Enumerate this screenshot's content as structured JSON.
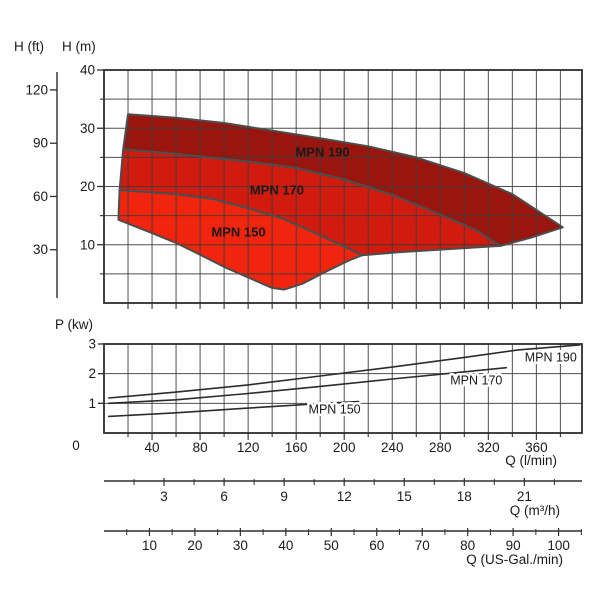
{
  "labels": {
    "head_ft_axis": "H (ft)",
    "head_m_axis": "H (m)",
    "power_axis": "P (kw)",
    "flow_lmin": "Q (l/min)",
    "flow_m3h": "Q (m³/h)",
    "flow_usgal": "Q (US-Gal./min)"
  },
  "colors": {
    "background": "#ffffff",
    "grid": "#3d3d3d",
    "axis": "#2e2e2e",
    "outline": "#4d4d4d",
    "text": "#1a1a1a",
    "region_label_text": "#ffffff",
    "mpn150": "#f1250e",
    "mpn170": "#d01b0e",
    "mpn190": "#9a150d"
  },
  "chart_data": [
    {
      "id": "head-capacity-map",
      "type": "area",
      "y_axis": {
        "label": "H (m)",
        "lim": [
          0,
          40
        ],
        "ticks": [
          10,
          20,
          30,
          40
        ],
        "minor_ticks": [
          5,
          15,
          25,
          35
        ],
        "grid_step": 5
      },
      "y_axis_secondary": {
        "label": "H (ft)",
        "ticks": [
          30,
          60,
          90,
          120
        ],
        "meters_per_foot": 0.3048
      },
      "x_axis": {
        "label": "Q (l/min)",
        "lim": [
          0,
          398
        ],
        "grid_step": 20,
        "tick_step": 20
      },
      "regions": [
        {
          "name": "MPN 190",
          "color": "#9a150d",
          "label_q": 182,
          "label_h": 25.9,
          "points": [
            [
              20,
              32.4
            ],
            [
              60,
              31.8
            ],
            [
              100,
              30.9
            ],
            [
              140,
              29.6
            ],
            [
              180,
              28.3
            ],
            [
              220,
              26.9
            ],
            [
              260,
              25.0
            ],
            [
              300,
              22.3
            ],
            [
              340,
              18.7
            ],
            [
              382,
              13.0
            ],
            [
              355,
              11.2
            ],
            [
              330,
              9.8
            ],
            [
              310,
              12.5
            ],
            [
              280,
              15.2
            ],
            [
              240,
              18.6
            ],
            [
              200,
              21.2
            ],
            [
              160,
              23.2
            ],
            [
              120,
              24.3
            ],
            [
              60,
              25.6
            ],
            [
              16,
              26.4
            ]
          ]
        },
        {
          "name": "MPN 170",
          "color": "#d01b0e",
          "label_q": 144,
          "label_h": 19.4,
          "points": [
            [
              16,
              26.4
            ],
            [
              60,
              25.6
            ],
            [
              120,
              24.3
            ],
            [
              160,
              23.2
            ],
            [
              200,
              21.2
            ],
            [
              240,
              18.6
            ],
            [
              280,
              15.2
            ],
            [
              310,
              12.5
            ],
            [
              330,
              9.8
            ],
            [
              305,
              9.5
            ],
            [
              275,
              9.1
            ],
            [
              245,
              8.7
            ],
            [
              215,
              8.2
            ],
            [
              205,
              9.2
            ],
            [
              180,
              11.6
            ],
            [
              150,
              14.4
            ],
            [
              120,
              16.3
            ],
            [
              90,
              17.9
            ],
            [
              60,
              18.7
            ],
            [
              13,
              19.4
            ]
          ]
        },
        {
          "name": "MPN 150",
          "color": "#f1250e",
          "label_q": 112,
          "label_h": 12.2,
          "points": [
            [
              13,
              19.4
            ],
            [
              60,
              18.7
            ],
            [
              90,
              17.9
            ],
            [
              120,
              16.3
            ],
            [
              150,
              14.4
            ],
            [
              180,
              11.6
            ],
            [
              205,
              9.2
            ],
            [
              215,
              8.2
            ],
            [
              205,
              7.4
            ],
            [
              185,
              5.4
            ],
            [
              165,
              3.3
            ],
            [
              150,
              2.3
            ],
            [
              140,
              2.6
            ],
            [
              120,
              4.4
            ],
            [
              100,
              6.2
            ],
            [
              80,
              8.3
            ],
            [
              60,
              10.3
            ],
            [
              40,
              12.0
            ],
            [
              12,
              14.3
            ]
          ]
        }
      ]
    },
    {
      "id": "power-chart",
      "type": "line",
      "y_axis": {
        "label": "P (kw)",
        "lim": [
          0,
          3
        ],
        "ticks": [
          1,
          2,
          3
        ],
        "grid_lines": [
          1,
          2
        ]
      },
      "x_axis": {
        "label": "Q (l/min)",
        "lim": [
          0,
          398
        ],
        "grid_step": 20,
        "minor_tick_step": 20,
        "tick_labels": [
          0,
          40,
          80,
          120,
          160,
          200,
          240,
          280,
          320,
          360
        ]
      },
      "series": [
        {
          "name": "MPN 190",
          "label_q": 372,
          "label_p": 2.56,
          "points": [
            [
              4,
              1.18
            ],
            [
              60,
              1.38
            ],
            [
              120,
              1.62
            ],
            [
              180,
              1.92
            ],
            [
              240,
              2.22
            ],
            [
              300,
              2.55
            ],
            [
              345,
              2.8
            ],
            [
              396,
              2.97
            ]
          ]
        },
        {
          "name": "MPN 170",
          "label_q": 310,
          "label_p": 1.79,
          "points": [
            [
              4,
              1.0
            ],
            [
              60,
              1.12
            ],
            [
              120,
              1.33
            ],
            [
              180,
              1.57
            ],
            [
              240,
              1.82
            ],
            [
              290,
              2.02
            ],
            [
              335,
              2.2
            ]
          ]
        },
        {
          "name": "MPN 150",
          "label_q": 192,
          "label_p": 0.81,
          "points": [
            [
              4,
              0.56
            ],
            [
              60,
              0.68
            ],
            [
              120,
              0.84
            ],
            [
              180,
              0.99
            ],
            [
              212,
              1.06
            ]
          ]
        }
      ]
    }
  ],
  "flow_scales": [
    {
      "unit_label": "Q (m³/h)",
      "lmin_per_unit": 16.667,
      "ticks": [
        3,
        6,
        9,
        12,
        15,
        18,
        21
      ],
      "minor_ticks": [
        1.5,
        4.5,
        7.5,
        10.5,
        13.5,
        16.5,
        19.5,
        22.5
      ]
    },
    {
      "unit_label": "Q (US-Gal./min)",
      "lmin_per_unit": 3.785,
      "ticks": [
        10,
        20,
        30,
        40,
        50,
        60,
        70,
        80,
        90,
        100
      ],
      "minor_ticks": [
        5,
        15,
        25,
        35,
        45,
        55,
        65,
        75,
        85,
        95,
        105
      ]
    }
  ]
}
